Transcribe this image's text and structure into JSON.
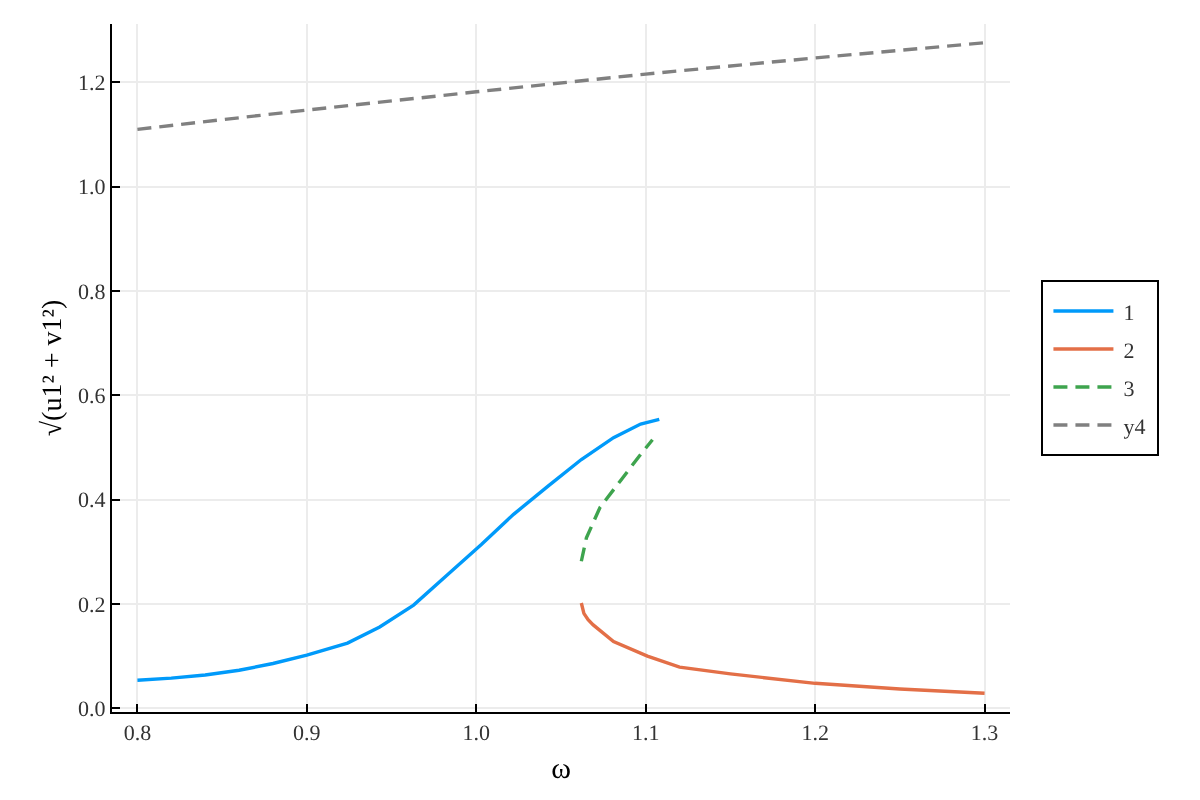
{
  "chart_data": {
    "type": "line",
    "xlabel": "ω",
    "ylabel": "√(u1² + v1²)",
    "xlim": [
      0.785,
      1.315
    ],
    "xticks": [
      0.8,
      0.9,
      {
        "value": 1,
        "label": "1.0"
      },
      1.1,
      1.2,
      1.3
    ],
    "ylim": [
      -0.007,
      1.312
    ],
    "yticks": [
      {
        "value": 0,
        "label": "0.0"
      },
      0.2,
      0.4,
      0.6,
      0.8,
      {
        "value": 1,
        "label": "1.0"
      },
      1.2
    ],
    "grid": true,
    "legend": "right",
    "marker": "none",
    "series": [
      {
        "name": "1",
        "color": "#009afa",
        "line_style": "solid",
        "x": [
          0.8,
          0.82,
          0.84,
          0.86,
          0.88,
          0.9,
          0.924,
          0.943,
          0.963,
          0.983,
          1.003,
          1.022,
          1.042,
          1.062,
          1.081,
          1.097,
          1.108
        ],
        "values": [
          0.054,
          0.058,
          0.064,
          0.073,
          0.086,
          0.102,
          0.125,
          0.156,
          0.198,
          0.256,
          0.314,
          0.372,
          0.425,
          0.477,
          0.519,
          0.545,
          0.554
        ]
      },
      {
        "name": "2",
        "color": "#e36f47",
        "line_style": "solid",
        "x": [
          1.062,
          1.0635,
          1.066,
          1.069,
          1.081,
          1.101,
          1.12,
          1.15,
          1.2,
          1.25,
          1.3
        ],
        "values": [
          0.202,
          0.182,
          0.17,
          0.16,
          0.128,
          0.1,
          0.079,
          0.066,
          0.048,
          0.037,
          0.029
        ]
      },
      {
        "name": "3",
        "color": "#3ea44e",
        "line_style": "dashed",
        "x": [
          1.062,
          1.065,
          1.073,
          1.085,
          1.097,
          1.104
        ],
        "values": [
          0.282,
          0.327,
          0.385,
          0.436,
          0.487,
          0.515
        ]
      },
      {
        "name": "y4",
        "color": "#808080",
        "line_style": "dashed",
        "x": [
          0.8,
          0.9,
          1.0,
          1.1,
          1.2,
          1.3
        ],
        "values": [
          1.11,
          1.147,
          1.182,
          1.216,
          1.247,
          1.276
        ]
      }
    ]
  }
}
